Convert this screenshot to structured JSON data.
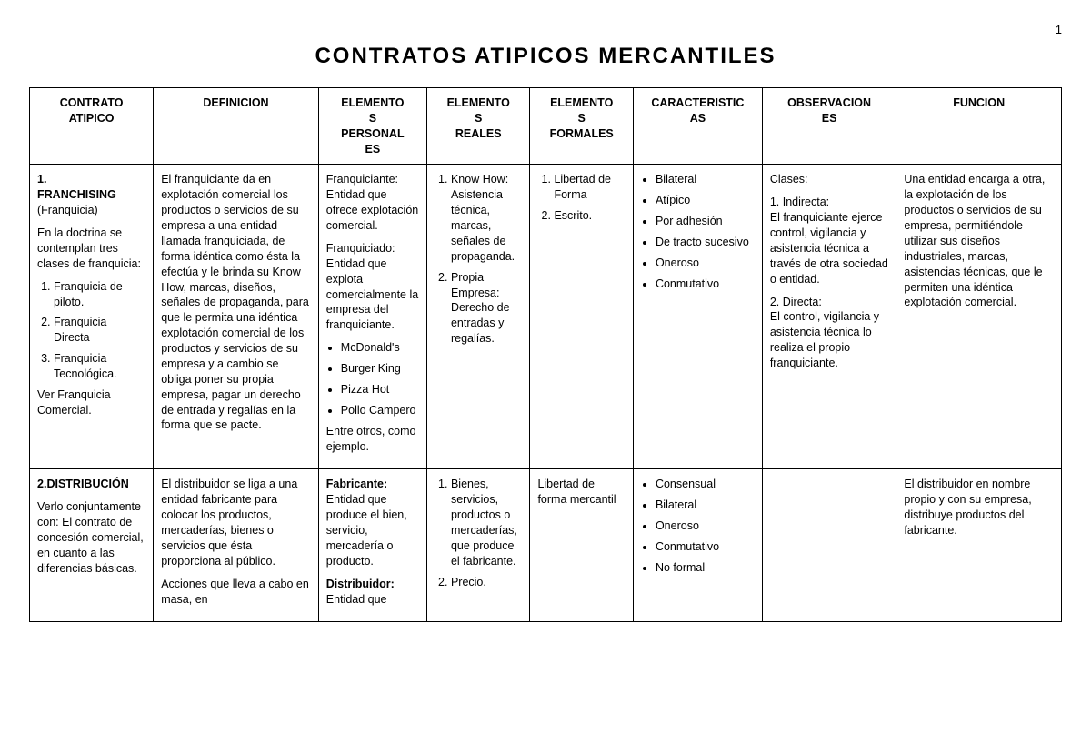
{
  "page_number": "1",
  "title": "CONTRATOS ATIPICOS MERCANTILES",
  "columns": [
    "CONTRATO ATIPICO",
    "DEFINICION",
    "ELEMENTOS PERSONALES",
    "ELEMENTOS REALES",
    "ELEMENTOS FORMALES",
    "CARACTERISTICAS",
    "OBSERVACIONES",
    "FUNCION"
  ],
  "col_header_split": [
    [
      "CONTRATO",
      "ATIPICO"
    ],
    [
      "DEFINICION",
      ""
    ],
    [
      "ELEMENTO",
      "S",
      "PERSONAL",
      "ES"
    ],
    [
      "ELEMENTO",
      "S",
      "REALES"
    ],
    [
      "ELEMENTO",
      "S",
      "FORMALES"
    ],
    [
      "CARACTERISTIC",
      "AS"
    ],
    [
      "OBSERVACION",
      "ES"
    ],
    [
      "FUNCION",
      ""
    ]
  ],
  "row1": {
    "contrato_num": "1.",
    "contrato_nombre": "FRANCHISING",
    "contrato_sub": "(Franquicia)",
    "contrato_intro": "En la doctrina se contemplan tres clases de franquicia:",
    "contrato_lista": [
      "Franquicia de piloto.",
      "Franquicia Directa",
      "Franquicia Tecnológica."
    ],
    "contrato_ver": "Ver Franquicia Comercial.",
    "definicion": "El franquiciante da en explotación comercial los productos o servicios de su empresa a una entidad llamada franquiciada, de forma idéntica como ésta la efectúa y le brinda su Know How, marcas, diseños, señales de propaganda, para que le permita una idéntica explotación comercial de los productos y servicios de su empresa y a cambio se obliga poner su propia empresa, pagar un derecho de entrada y regalías en la forma que se pacte.",
    "personales_p1": "Franquiciante: Entidad que ofrece explotación comercial.",
    "personales_p2": "Franquiciado: Entidad que explota comercialmente la empresa del franquiciante.",
    "personales_ej": [
      "McDonald's",
      "Burger King",
      "Pizza Hot",
      "Pollo Campero"
    ],
    "personales_end": "Entre otros, como ejemplo.",
    "reales": [
      "Know How: Asistencia técnica, marcas, señales de propaganda.",
      "Propia Empresa: Derecho de entradas y regalías."
    ],
    "formales": [
      "Libertad de Forma",
      "Escrito."
    ],
    "caracteristicas": [
      "Bilateral",
      "Atípico",
      "Por adhesión",
      "De tracto sucesivo",
      "Oneroso",
      "Conmutativo"
    ],
    "obs_lead": "Clases:",
    "obs_1_lbl": "1. Indirecta:",
    "obs_1_txt": "El franquiciante ejerce control, vigilancia y asistencia técnica a través de otra sociedad o entidad.",
    "obs_2_lbl": "2. Directa:",
    "obs_2_txt": "El control, vigilancia y asistencia técnica lo realiza el propio franquiciante.",
    "funcion": "Una entidad encarga a otra, la explotación de los productos o servicios de su empresa, permitiéndole utilizar sus diseños industriales, marcas, asistencias técnicas, que le permiten una idéntica explotación comercial."
  },
  "row2": {
    "contrato_num": "2.",
    "contrato_nombre": "DISTRIBUCIÓN",
    "contrato_intro": "Verlo conjuntamente con: El contrato de concesión comercial, en cuanto a las diferencias básicas.",
    "definicion_p1": "El distribuidor se liga a una entidad fabricante para colocar los productos, mercaderías, bienes o servicios que ésta proporciona al público.",
    "definicion_p2": "Acciones que lleva a cabo en masa, en",
    "pers_fab_lbl": "Fabricante:",
    "pers_fab_txt": "Entidad que produce el bien, servicio, mercadería o producto.",
    "pers_dist_lbl": "Distribuidor:",
    "pers_dist_txt": "Entidad que",
    "reales": [
      "Bienes, servicios, productos o mercaderías, que produce el fabricante.",
      "Precio."
    ],
    "formales": "Libertad de forma mercantil",
    "caracteristicas": [
      "Consensual",
      "Bilateral",
      "Oneroso",
      "Conmutativo",
      "No formal"
    ],
    "observaciones": "",
    "funcion": "El distribuidor en nombre propio y con su empresa, distribuye productos del fabricante."
  }
}
